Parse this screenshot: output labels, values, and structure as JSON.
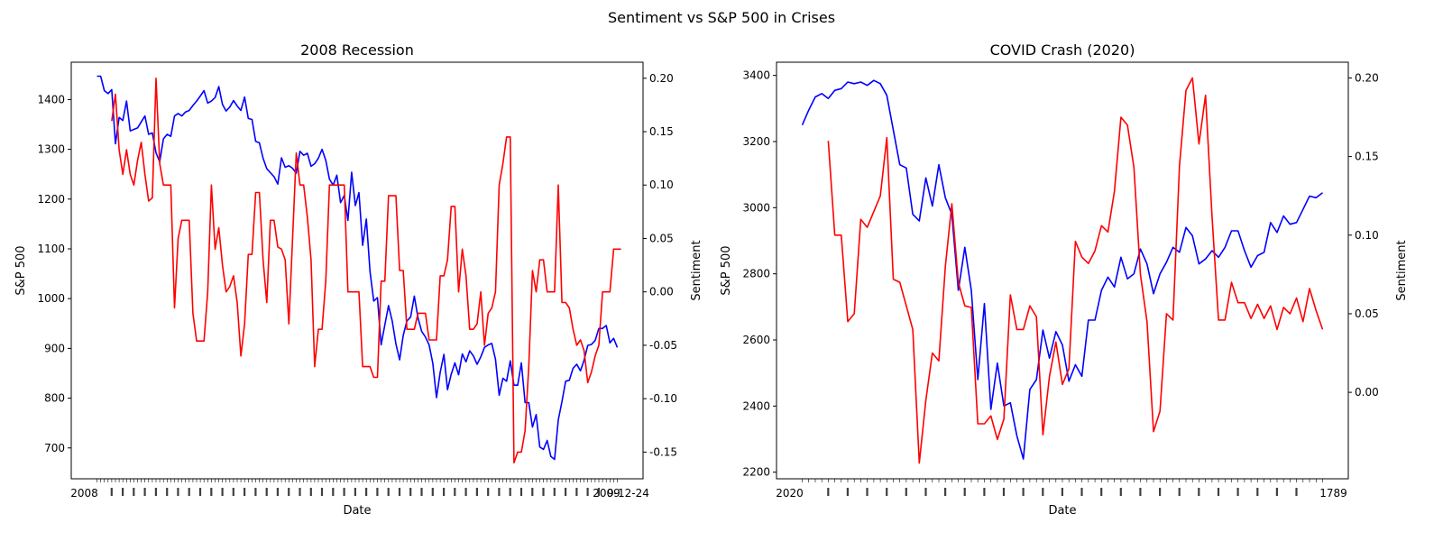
{
  "figure": {
    "suptitle": "Sentiment vs S&P 500 in Crises"
  },
  "colors": {
    "sp500": "#0000ff",
    "sentiment": "#ff0000",
    "axes": "#000000"
  },
  "chart_data": [
    {
      "type": "line",
      "title": "2008 Recession",
      "xlabel": "Date",
      "ylabel": "S&P 500",
      "y2label": "Sentiment",
      "x_tick_labels_overlapping": true,
      "x_tick_label_start": "2008",
      "x_tick_label_end": "2009",
      "x_tick_label_end_fragment": "9-12-24",
      "ylim": [
        638,
        1475
      ],
      "y_ticks": [
        700,
        800,
        900,
        1000,
        1100,
        1200,
        1300,
        1400
      ],
      "y2lim": [
        -0.175,
        0.215
      ],
      "y2_ticks": [
        -0.15,
        -0.1,
        -0.05,
        0.0,
        0.05,
        0.1,
        0.15,
        0.2
      ],
      "series": [
        {
          "name": "S&P 500",
          "axis": "left",
          "values": [
            1447,
            1447,
            1418,
            1412,
            1420,
            1311,
            1364,
            1358,
            1397,
            1337,
            1340,
            1343,
            1355,
            1367,
            1330,
            1333,
            1293,
            1275,
            1321,
            1330,
            1326,
            1367,
            1372,
            1367,
            1375,
            1378,
            1388,
            1397,
            1407,
            1418,
            1393,
            1397,
            1404,
            1426,
            1390,
            1377,
            1385,
            1398,
            1387,
            1378,
            1405,
            1362,
            1360,
            1316,
            1313,
            1282,
            1261,
            1253,
            1245,
            1230,
            1283,
            1264,
            1267,
            1262,
            1252,
            1296,
            1288,
            1292,
            1266,
            1271,
            1282,
            1300,
            1278,
            1240,
            1228,
            1248,
            1193,
            1207,
            1157,
            1254,
            1187,
            1213,
            1107,
            1160,
            1054,
            995,
            1002,
            907,
            947,
            986,
            955,
            909,
            877,
            926,
            955,
            963,
            1005,
            961,
            934,
            923,
            907,
            870,
            801,
            852,
            888,
            817,
            848,
            871,
            847,
            889,
            873,
            895,
            885,
            868,
            883,
            902,
            907,
            910,
            878,
            806,
            840,
            834,
            875,
            826,
            826,
            871,
            791,
            791,
            742,
            767,
            702,
            697,
            715,
            683,
            677,
            756,
            793,
            834,
            836,
            860,
            868,
            855,
            876,
            906,
            908,
            916,
            940,
            940,
            946,
            911,
            920,
            902
          ]
        },
        {
          "name": "Sentiment",
          "axis": "right",
          "values": [
            null,
            null,
            null,
            null,
            0.16,
            0.185,
            0.133,
            0.11,
            0.133,
            0.11,
            0.1,
            0.123,
            0.14,
            0.11,
            0.085,
            0.088,
            0.2,
            0.12,
            0.1,
            0.1,
            0.1,
            -0.015,
            0.05,
            0.067,
            0.067,
            0.067,
            -0.02,
            -0.046,
            -0.046,
            -0.046,
            0.0,
            0.1,
            0.04,
            0.06,
            0.025,
            0.0,
            0.005,
            0.015,
            -0.01,
            -0.06,
            -0.03,
            0.035,
            0.035,
            0.093,
            0.093,
            0.03,
            -0.01,
            0.067,
            0.067,
            0.042,
            0.04,
            0.03,
            -0.03,
            0.05,
            0.13,
            0.1,
            0.1,
            0.07,
            0.03,
            -0.07,
            -0.035,
            -0.035,
            0.01,
            0.1,
            0.1,
            0.1,
            0.1,
            0.1,
            0.0,
            0.0,
            0.0,
            0.0,
            -0.07,
            -0.07,
            -0.07,
            -0.08,
            -0.08,
            0.01,
            0.01,
            0.09,
            0.09,
            0.09,
            0.02,
            0.02,
            -0.035,
            -0.035,
            -0.035,
            -0.02,
            -0.02,
            -0.02,
            -0.045,
            -0.045,
            -0.045,
            0.015,
            0.015,
            0.03,
            0.08,
            0.08,
            0.0,
            0.04,
            0.015,
            -0.035,
            -0.035,
            -0.03,
            0.0,
            -0.05,
            -0.02,
            -0.015,
            0.0,
            0.1,
            0.12,
            0.145,
            0.145,
            -0.16,
            -0.15,
            -0.15,
            -0.13,
            -0.07,
            0.02,
            0.0,
            0.03,
            0.03,
            0.0,
            0.0,
            0.0,
            0.1,
            -0.01,
            -0.01,
            -0.015,
            -0.035,
            -0.05,
            -0.045,
            -0.055,
            -0.085,
            -0.075,
            -0.06,
            -0.05,
            0.0,
            0.0,
            0.0,
            0.04,
            0.04,
            0.04
          ]
        }
      ]
    },
    {
      "type": "line",
      "title": "COVID Crash (2020)",
      "xlabel": "Date",
      "ylabel": "S&P 500",
      "y2label": "Sentiment",
      "x_tick_labels_overlapping": true,
      "x_tick_label_start": "2020",
      "x_tick_label_end_fragment": "1789",
      "ylim": [
        2180,
        3440
      ],
      "y_ticks": [
        2200,
        2400,
        2600,
        2800,
        3000,
        3200,
        3400
      ],
      "y2lim": [
        -0.055,
        0.21
      ],
      "y2_ticks": [
        0.0,
        0.05,
        0.1,
        0.15,
        0.2
      ],
      "series": [
        {
          "name": "S&P 500",
          "axis": "left",
          "values": [
            3250,
            3295,
            3335,
            3345,
            3330,
            3355,
            3360,
            3380,
            3375,
            3380,
            3370,
            3385,
            3375,
            3340,
            3235,
            3130,
            3120,
            2980,
            2960,
            3090,
            3005,
            3130,
            3030,
            2980,
            2750,
            2880,
            2750,
            2480,
            2710,
            2390,
            2530,
            2400,
            2410,
            2310,
            2240,
            2450,
            2480,
            2630,
            2545,
            2625,
            2585,
            2475,
            2525,
            2490,
            2660,
            2660,
            2750,
            2790,
            2760,
            2850,
            2785,
            2800,
            2875,
            2830,
            2740,
            2800,
            2835,
            2880,
            2865,
            2940,
            2915,
            2830,
            2845,
            2870,
            2850,
            2880,
            2930,
            2930,
            2870,
            2820,
            2855,
            2865,
            2955,
            2925,
            2975,
            2950,
            2955,
            2995,
            3035,
            3030,
            3045
          ]
        },
        {
          "name": "Sentiment",
          "axis": "right",
          "values": [
            null,
            null,
            null,
            null,
            0.16,
            0.1,
            0.1,
            0.045,
            0.05,
            0.11,
            0.105,
            0.115,
            0.125,
            0.162,
            0.072,
            0.07,
            0.055,
            0.04,
            -0.045,
            -0.005,
            0.025,
            0.02,
            0.08,
            0.12,
            0.07,
            0.055,
            0.054,
            -0.02,
            -0.02,
            -0.015,
            -0.03,
            -0.017,
            0.062,
            0.04,
            0.04,
            0.055,
            0.048,
            -0.027,
            0.01,
            0.032,
            0.005,
            0.015,
            0.096,
            0.086,
            0.082,
            0.09,
            0.106,
            0.102,
            0.128,
            0.175,
            0.17,
            0.143,
            0.075,
            0.045,
            -0.025,
            -0.012,
            0.05,
            0.046,
            0.144,
            0.192,
            0.2,
            0.158,
            0.189,
            0.112,
            0.046,
            0.046,
            0.07,
            0.057,
            0.057,
            0.047,
            0.056,
            0.047,
            0.055,
            0.04,
            0.054,
            0.05,
            0.06,
            0.045,
            0.066,
            0.052,
            0.04
          ]
        }
      ]
    }
  ]
}
